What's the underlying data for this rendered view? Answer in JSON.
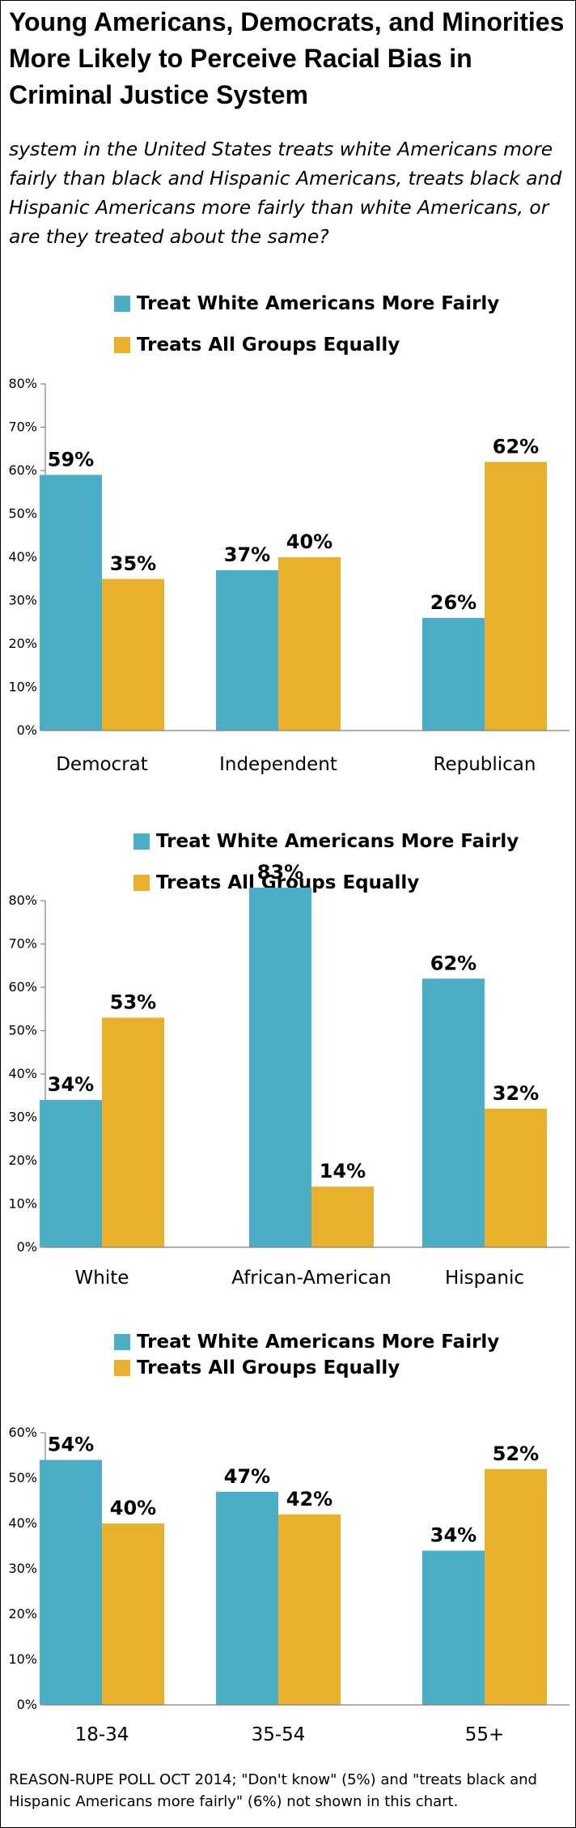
{
  "title": "Young Americans, Democrats, and Minorities More Likely to Perceive Racial Bias in Criminal Justice System",
  "subtitle": "system in the United States treats white Americans more fairly than black and Hispanic Americans, treats black and Hispanic Americans more fairly than white Americans, or are they treated about the same?",
  "footer": "REASON-RUPE POLL OCT 2014; \"Don't know\" (5%) and \"treats black and Hispanic Americans more fairly\" (6%) not shown in this chart.",
  "colors": {
    "white_fairly": "#4badc6",
    "all_equal": "#e8b02b"
  },
  "chart_data": [
    {
      "type": "bar",
      "title": "",
      "categories": [
        "Democrat",
        "Independent",
        "Republican"
      ],
      "series": [
        {
          "name": "Treat White Americans More Fairly",
          "values": [
            59,
            37,
            26
          ]
        },
        {
          "name": "Treats All Groups Equally",
          "values": [
            35,
            40,
            62
          ]
        }
      ],
      "data_labels": [
        [
          "59%",
          "37%",
          "26%"
        ],
        [
          "35%",
          "40%",
          "62%"
        ]
      ],
      "yticks": [
        "0%",
        "10%",
        "20%",
        "30%",
        "40%",
        "50%",
        "60%",
        "70%",
        "80%"
      ],
      "ylim": [
        0,
        80
      ],
      "legend": "top",
      "grid": false
    },
    {
      "type": "bar",
      "title": "",
      "categories": [
        "White",
        "African-American",
        "Hispanic"
      ],
      "series": [
        {
          "name": "Treat White Americans More Fairly",
          "values": [
            34,
            83,
            62
          ]
        },
        {
          "name": "Treats All Groups Equally",
          "values": [
            53,
            14,
            32
          ]
        }
      ],
      "data_labels": [
        [
          "34%",
          "83%",
          "62%"
        ],
        [
          "53%",
          "14%",
          "32%"
        ]
      ],
      "yticks": [
        "0%",
        "10%",
        "20%",
        "30%",
        "40%",
        "50%",
        "60%",
        "70%",
        "80%"
      ],
      "ylim": [
        0,
        80
      ],
      "legend": "top",
      "grid": false
    },
    {
      "type": "bar",
      "title": "",
      "categories": [
        "18-34",
        "35-54",
        "55+"
      ],
      "series": [
        {
          "name": "Treat White Americans More Fairly",
          "values": [
            54,
            47,
            34
          ]
        },
        {
          "name": "Treats All Groups Equally",
          "values": [
            40,
            42,
            52
          ]
        }
      ],
      "data_labels": [
        [
          "54%",
          "47%",
          "34%"
        ],
        [
          "40%",
          "42%",
          "52%"
        ]
      ],
      "yticks": [
        "0%",
        "10%",
        "20%",
        "30%",
        "40%",
        "50%",
        "60%"
      ],
      "ylim": [
        0,
        60
      ],
      "legend": "top",
      "grid": false
    }
  ]
}
